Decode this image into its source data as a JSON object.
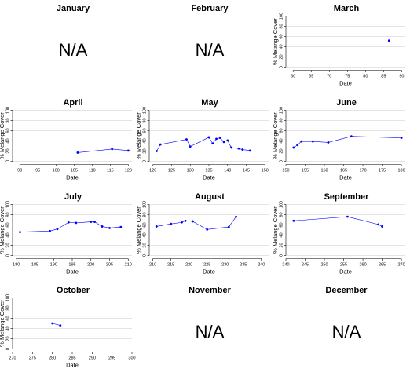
{
  "chart_data": [
    {
      "type": "scatter",
      "title": "January",
      "na_label": "N/A",
      "xlabel": "",
      "ylabel": "",
      "x": [],
      "y": []
    },
    {
      "type": "scatter",
      "title": "February",
      "na_label": "N/A",
      "xlabel": "",
      "ylabel": "",
      "x": [],
      "y": []
    },
    {
      "type": "scatter",
      "title": "March",
      "xlabel": "Date",
      "ylabel": "% Melange Cover",
      "xlim": [
        58,
        91
      ],
      "ylim": [
        0,
        100
      ],
      "xticks": [
        60,
        65,
        70,
        75,
        80,
        85,
        90
      ],
      "yticks": [
        0,
        20,
        40,
        60,
        80,
        100
      ],
      "x": [
        86.5
      ],
      "y": [
        52
      ],
      "connected": false,
      "grid": true
    },
    {
      "type": "line",
      "title": "April",
      "xlabel": "Date",
      "ylabel": "% Melange Cover",
      "xlim": [
        88,
        121
      ],
      "ylim": [
        0,
        100
      ],
      "xticks": [
        90,
        95,
        100,
        105,
        110,
        115,
        120
      ],
      "yticks": [
        0,
        20,
        40,
        60,
        80,
        100
      ],
      "x": [
        106,
        115.5,
        120
      ],
      "y": [
        17,
        24,
        21
      ],
      "connected": true,
      "grid": true
    },
    {
      "type": "line",
      "title": "May",
      "xlabel": "Date",
      "ylabel": "% Melange Cover",
      "xlim": [
        119,
        151
      ],
      "ylim": [
        0,
        100
      ],
      "xticks": [
        120,
        125,
        130,
        135,
        140,
        145,
        150
      ],
      "yticks": [
        0,
        20,
        40,
        60,
        80,
        100
      ],
      "x": [
        121,
        122,
        129,
        130,
        135,
        136,
        137,
        138,
        139,
        140,
        141,
        143,
        144,
        146
      ],
      "y": [
        20,
        33,
        43,
        29,
        47,
        35,
        44,
        46,
        38,
        41,
        27,
        25,
        23,
        21
      ],
      "connected": true,
      "grid": true
    },
    {
      "type": "line",
      "title": "June",
      "xlabel": "Date",
      "ylabel": "% Melange Cover",
      "xlim": [
        150,
        181
      ],
      "ylim": [
        0,
        100
      ],
      "xticks": [
        150,
        155,
        160,
        165,
        170,
        175,
        180
      ],
      "yticks": [
        0,
        20,
        40,
        60,
        80,
        100
      ],
      "x": [
        152,
        153,
        154,
        157,
        161,
        167,
        180
      ],
      "y": [
        27,
        32,
        39,
        39,
        37,
        49,
        46
      ],
      "connected": true,
      "grid": true
    },
    {
      "type": "line",
      "title": "July",
      "xlabel": "Date",
      "ylabel": "% Melange Cover",
      "xlim": [
        179,
        211
      ],
      "ylim": [
        0,
        100
      ],
      "xticks": [
        180,
        185,
        190,
        195,
        200,
        205,
        210
      ],
      "yticks": [
        0,
        20,
        40,
        60,
        80,
        100
      ],
      "x": [
        181,
        189,
        191,
        194,
        196,
        200,
        201,
        203,
        205,
        208
      ],
      "y": [
        46,
        48,
        52,
        65,
        64,
        66,
        66,
        57,
        54,
        56
      ],
      "connected": true,
      "grid": true
    },
    {
      "type": "line",
      "title": "August",
      "xlabel": "Date",
      "ylabel": "% Melange Cover",
      "xlim": [
        209,
        242
      ],
      "ylim": [
        0,
        100
      ],
      "xticks": [
        210,
        215,
        220,
        225,
        230,
        235,
        240
      ],
      "yticks": [
        0,
        20,
        40,
        60,
        80,
        100
      ],
      "x": [
        211,
        215,
        218,
        219,
        221,
        225,
        231,
        233
      ],
      "y": [
        57,
        62,
        65,
        68,
        67,
        51,
        56,
        76
      ],
      "connected": true,
      "grid": true
    },
    {
      "type": "line",
      "title": "September",
      "xlabel": "Date",
      "ylabel": "% Melange Cover",
      "xlim": [
        240,
        271
      ],
      "ylim": [
        0,
        100
      ],
      "xticks": [
        240,
        245,
        250,
        255,
        260,
        265,
        270
      ],
      "yticks": [
        0,
        20,
        40,
        60,
        80,
        100
      ],
      "x": [
        242,
        256,
        264,
        265
      ],
      "y": [
        68,
        76,
        61,
        57
      ],
      "connected": true,
      "grid": true
    },
    {
      "type": "line",
      "title": "October",
      "xlabel": "Date",
      "ylabel": "% Melange Cover",
      "xlim": [
        270,
        300
      ],
      "ylim": [
        0,
        100
      ],
      "xticks": [
        270,
        275,
        280,
        285,
        290,
        295,
        300
      ],
      "yticks": [
        0,
        20,
        40,
        60,
        80,
        100
      ],
      "x": [
        280,
        282
      ],
      "y": [
        50,
        46
      ],
      "connected": true,
      "grid": true
    },
    {
      "type": "scatter",
      "title": "November",
      "na_label": "N/A",
      "xlabel": "",
      "ylabel": "",
      "x": [],
      "y": []
    },
    {
      "type": "scatter",
      "title": "December",
      "na_label": "N/A",
      "xlabel": "",
      "ylabel": "",
      "x": [],
      "y": []
    }
  ],
  "colors": {
    "series": "#0000ff",
    "grid": "#c8c8c8",
    "axis": "#000000"
  }
}
